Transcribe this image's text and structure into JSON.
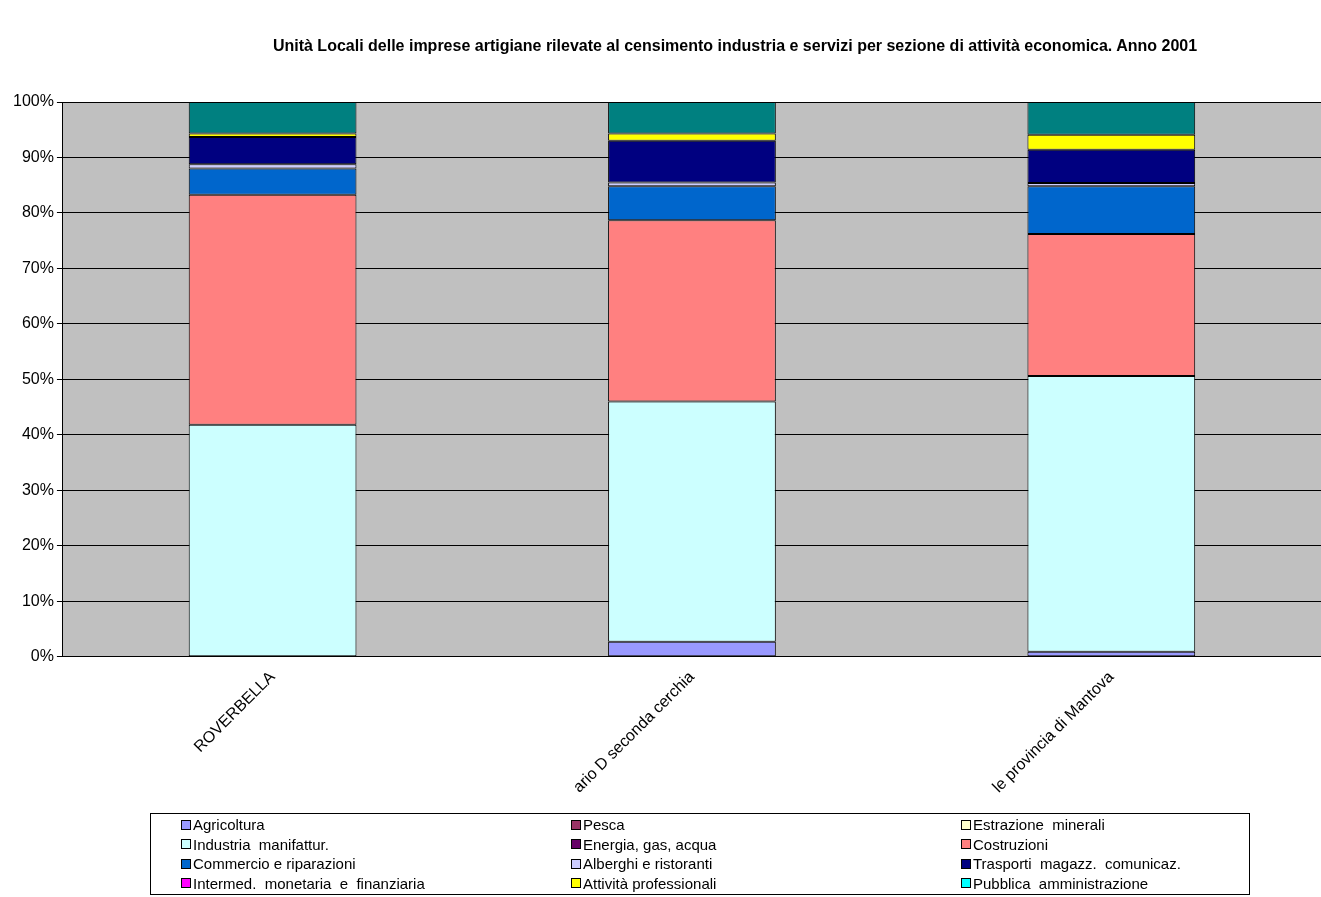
{
  "chart_data": {
    "type": "bar",
    "stacked": true,
    "title": "Unità Locali delle imprese artigiane rilevate al censimento industria e servizi per sezione di attività economica. Anno 2001",
    "categories": [
      "ROVERBELLA",
      "ario D seconda cerchia",
      "le provincia di Mantova"
    ],
    "ylim": [
      0,
      100
    ],
    "yticks": [
      {
        "value": 0,
        "label": "0%"
      },
      {
        "value": 10,
        "label": "10%"
      },
      {
        "value": 20,
        "label": "20%"
      },
      {
        "value": 30,
        "label": "30%"
      },
      {
        "value": 40,
        "label": "40%"
      },
      {
        "value": 50,
        "label": "50%"
      },
      {
        "value": 60,
        "label": "60%"
      },
      {
        "value": 70,
        "label": "70%"
      },
      {
        "value": 80,
        "label": "80%"
      },
      {
        "value": 90,
        "label": "90%"
      },
      {
        "value": 100,
        "label": "100%"
      }
    ],
    "grid": "y",
    "legend": "bottom",
    "series": [
      {
        "name": "Agricoltura",
        "color": "#9999ff",
        "values": [
          0,
          2.7,
          0.9
        ]
      },
      {
        "name": "Pesca",
        "color": "#993366",
        "values": [
          0,
          0,
          0
        ]
      },
      {
        "name": "Estrazione  minerali",
        "color": "#ffffcc",
        "values": [
          0,
          0,
          0
        ]
      },
      {
        "name": "Industria  manifattur.",
        "color": "#ccffff",
        "values": [
          41.8,
          43.3,
          49.7
        ]
      },
      {
        "name": "Energia, gas, acqua",
        "color": "#660066",
        "values": [
          0,
          0,
          0
        ]
      },
      {
        "name": "Costruzioni",
        "color": "#ff8080",
        "values": [
          41.5,
          32.7,
          25.6
        ]
      },
      {
        "name": "Commercio e riparazioni",
        "color": "#0066cc",
        "values": [
          4.7,
          6.1,
          8.6
        ]
      },
      {
        "name": "Alberghi e ristoranti",
        "color": "#ccccff",
        "values": [
          0.8,
          0.7,
          0.6
        ]
      },
      {
        "name": "Trasporti  magazz.  comunicaz.",
        "color": "#000080",
        "values": [
          4.9,
          7.5,
          6.0
        ]
      },
      {
        "name": "Intermed.  monetaria  e  finanziaria",
        "color": "#ff00ff",
        "values": [
          0,
          0,
          0
        ]
      },
      {
        "name": "Attività professionali",
        "color": "#ffff00",
        "values": [
          0.6,
          1.3,
          2.7
        ]
      },
      {
        "name": "Pubblica  amministrazione",
        "color": "#00ffff",
        "values": [
          0,
          0,
          0
        ]
      },
      {
        "color": "#008080",
        "values": [
          5.7,
          5.7,
          5.9
        ]
      }
    ]
  }
}
